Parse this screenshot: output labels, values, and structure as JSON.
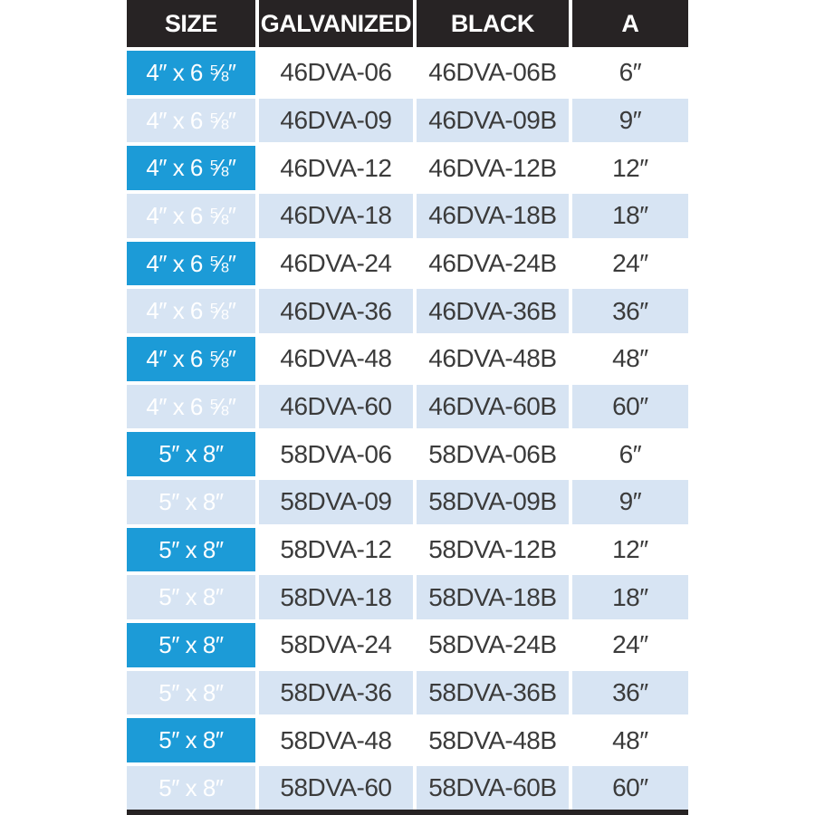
{
  "table": {
    "headers": [
      {
        "label": "SIZE"
      },
      {
        "label": "GALVANIZED"
      },
      {
        "label": "BLACK"
      },
      {
        "label": "A"
      }
    ],
    "rows": [
      {
        "size": "4″ x 6 ⅝″",
        "galvanized": "46DVA-06",
        "black": "46DVA-06B",
        "a": "6″"
      },
      {
        "size": "4″ x 6 ⅝″",
        "galvanized": "46DVA-09",
        "black": "46DVA-09B",
        "a": "9″"
      },
      {
        "size": "4″ x 6 ⅝″",
        "galvanized": "46DVA-12",
        "black": "46DVA-12B",
        "a": "12″"
      },
      {
        "size": "4″ x 6 ⅝″",
        "galvanized": "46DVA-18",
        "black": "46DVA-18B",
        "a": "18″"
      },
      {
        "size": "4″ x 6 ⅝″",
        "galvanized": "46DVA-24",
        "black": "46DVA-24B",
        "a": "24″"
      },
      {
        "size": "4″ x 6 ⅝″",
        "galvanized": "46DVA-36",
        "black": "46DVA-36B",
        "a": "36″"
      },
      {
        "size": "4″ x 6 ⅝″",
        "galvanized": "46DVA-48",
        "black": "46DVA-48B",
        "a": "48″"
      },
      {
        "size": "4″ x 6 ⅝″",
        "galvanized": "46DVA-60",
        "black": "46DVA-60B",
        "a": "60″"
      },
      {
        "size": "5″ x 8″",
        "galvanized": "58DVA-06",
        "black": "58DVA-06B",
        "a": "6″"
      },
      {
        "size": "5″ x 8″",
        "galvanized": "58DVA-09",
        "black": "58DVA-09B",
        "a": "9″"
      },
      {
        "size": "5″ x 8″",
        "galvanized": "58DVA-12",
        "black": "58DVA-12B",
        "a": "12″"
      },
      {
        "size": "5″ x 8″",
        "galvanized": "58DVA-18",
        "black": "58DVA-18B",
        "a": "18″"
      },
      {
        "size": "5″ x 8″",
        "galvanized": "58DVA-24",
        "black": "58DVA-24B",
        "a": "24″"
      },
      {
        "size": "5″ x 8″",
        "galvanized": "58DVA-36",
        "black": "58DVA-36B",
        "a": "36″"
      },
      {
        "size": "5″ x 8″",
        "galvanized": "58DVA-48",
        "black": "58DVA-48B",
        "a": "48″"
      },
      {
        "size": "5″ x 8″",
        "galvanized": "58DVA-60",
        "black": "58DVA-60B",
        "a": "60″"
      }
    ],
    "colors": {
      "header_bg": "#272324",
      "header_text": "#ffffff",
      "size_column_bg": "#1c9bd7",
      "size_column_text": "#ffffff",
      "row_bg": "#ffffff",
      "row_alt_bg": "#d7e4f3",
      "cell_text": "#3b3b3b",
      "separator": "#ffffff",
      "bottom_border": "#272324"
    }
  }
}
